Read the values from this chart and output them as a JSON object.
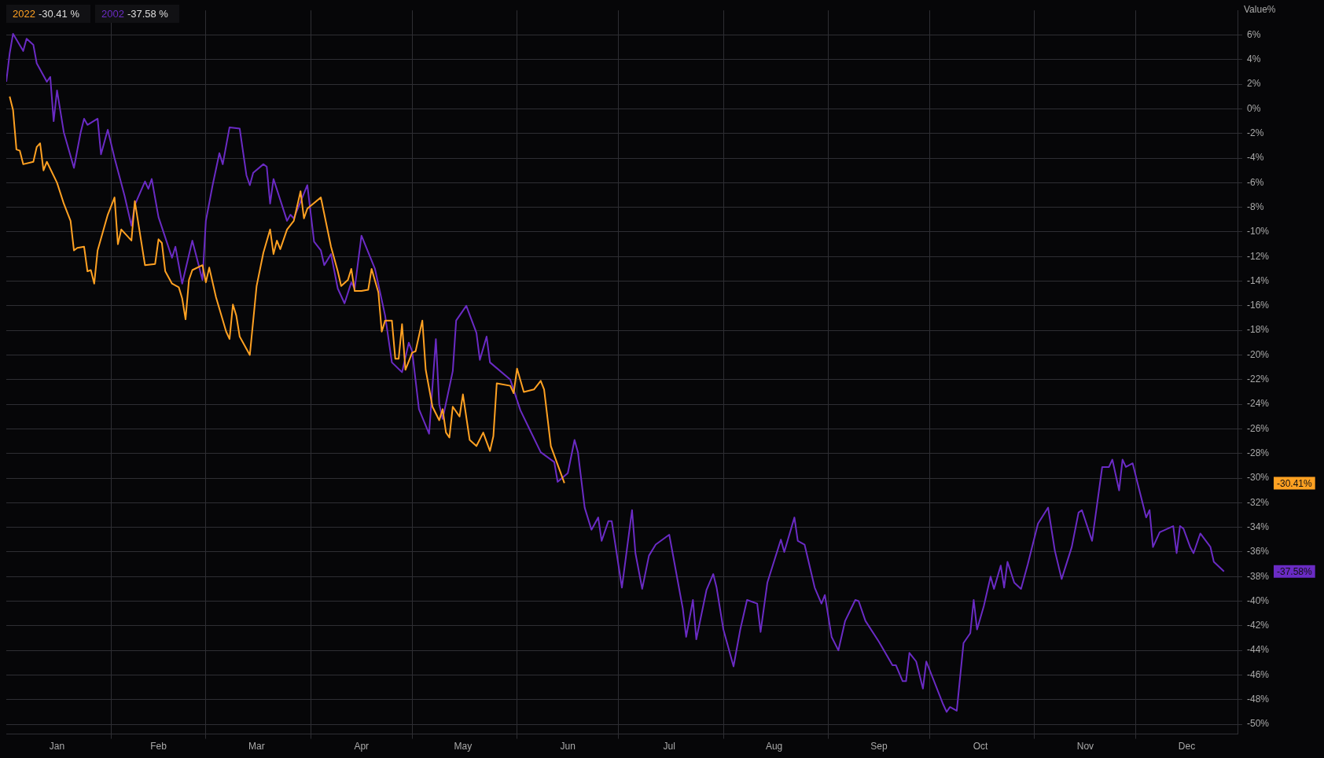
{
  "chart_data": {
    "type": "line",
    "ylabel": "Value%",
    "legend": "top left",
    "grid": true,
    "marker": "none",
    "line_style": "solid",
    "xlim": [
      "--01-01",
      "--12-31"
    ],
    "ylim": [
      -50.8,
      8
    ],
    "xticks": [
      {
        "value": "--01-16",
        "label": "Jan"
      },
      {
        "value": "--02-01",
        "label": null
      },
      {
        "value": "--02-15",
        "label": "Feb"
      },
      {
        "value": "--03-01",
        "label": null
      },
      {
        "value": "--03-16",
        "label": "Mar"
      },
      {
        "value": "--04-01",
        "label": null
      },
      {
        "value": "--04-16",
        "label": "Apr"
      },
      {
        "value": "--05-01",
        "label": null
      },
      {
        "value": "--05-16",
        "label": "May"
      },
      {
        "value": "--06-01",
        "label": null
      },
      {
        "value": "--06-16",
        "label": "Jun"
      },
      {
        "value": "--07-01",
        "label": null
      },
      {
        "value": "--07-16",
        "label": "Jul"
      },
      {
        "value": "--08-01",
        "label": null
      },
      {
        "value": "--08-16",
        "label": "Aug"
      },
      {
        "value": "--09-01",
        "label": null
      },
      {
        "value": "--09-16",
        "label": "Sep"
      },
      {
        "value": "--10-01",
        "label": null
      },
      {
        "value": "--10-16",
        "label": "Oct"
      },
      {
        "value": "--11-01",
        "label": null
      },
      {
        "value": "--11-16",
        "label": "Nov"
      },
      {
        "value": "--12-01",
        "label": null
      },
      {
        "value": "--12-16",
        "label": "Dec"
      }
    ],
    "yticks": [
      {
        "value": 6,
        "label": "6%"
      },
      {
        "value": 4,
        "label": "4%"
      },
      {
        "value": 2,
        "label": "2%"
      },
      {
        "value": 0,
        "label": "0%"
      },
      {
        "value": -2,
        "label": "-2%"
      },
      {
        "value": -4,
        "label": "-4%"
      },
      {
        "value": -6,
        "label": "-6%"
      },
      {
        "value": -8,
        "label": "-8%"
      },
      {
        "value": -10,
        "label": "-10%"
      },
      {
        "value": -12,
        "label": "-12%"
      },
      {
        "value": -14,
        "label": "-14%"
      },
      {
        "value": -16,
        "label": "-16%"
      },
      {
        "value": -18,
        "label": "-18%"
      },
      {
        "value": -20,
        "label": "-20%"
      },
      {
        "value": -22,
        "label": "-22%"
      },
      {
        "value": -24,
        "label": "-24%"
      },
      {
        "value": -26,
        "label": "-26%"
      },
      {
        "value": -28,
        "label": "-28%"
      },
      {
        "value": -30,
        "label": "-30%"
      },
      {
        "value": -32,
        "label": "-32%"
      },
      {
        "value": -34,
        "label": "-34%"
      },
      {
        "value": -36,
        "label": "-36%"
      },
      {
        "value": -38,
        "label": "-38%"
      },
      {
        "value": -40,
        "label": "-40%"
      },
      {
        "value": -42,
        "label": "-42%"
      },
      {
        "value": -44,
        "label": "-44%"
      },
      {
        "value": -46,
        "label": "-46%"
      },
      {
        "value": -48,
        "label": "-48%"
      },
      {
        "value": -50,
        "label": "-50%"
      }
    ],
    "annotations": [
      "-30.41%",
      "-37.58%",
      "-30.41 %",
      "-37.58 %"
    ],
    "series": [
      {
        "name": "2022",
        "color": "#ffa122",
        "x": [
          "--01-02",
          "--01-03",
          "--01-04",
          "--01-05",
          "--01-06",
          "--01-09",
          "--01-10",
          "--01-11",
          "--01-12",
          "--01-13",
          "--01-16",
          "--01-18",
          "--01-20",
          "--01-21",
          "--01-22",
          "--01-24",
          "--01-25",
          "--01-26",
          "--01-27",
          "--01-28",
          "--01-31",
          "--02-02",
          "--02-03",
          "--02-04",
          "--02-07",
          "--02-08",
          "--02-11",
          "--02-14",
          "--02-15",
          "--02-16",
          "--02-17",
          "--02-19",
          "--02-21",
          "--02-22",
          "--02-23",
          "--02-24",
          "--02-25",
          "--02-28",
          "--03-01",
          "--03-02",
          "--03-04",
          "--03-07",
          "--03-08",
          "--03-09",
          "--03-10",
          "--03-11",
          "--03-14",
          "--03-16",
          "--03-18",
          "--03-20",
          "--03-21",
          "--03-22",
          "--03-23",
          "--03-25",
          "--03-27",
          "--03-29",
          "--03-30",
          "--03-31",
          "--04-04",
          "--04-07",
          "--04-09",
          "--04-10",
          "--04-12",
          "--04-13",
          "--04-14",
          "--04-16",
          "--04-18",
          "--04-19",
          "--04-21",
          "--04-22",
          "--04-23",
          "--04-25",
          "--04-26",
          "--04-27",
          "--04-28",
          "--04-29",
          "--05-01",
          "--05-02",
          "--05-04",
          "--05-05",
          "--05-07",
          "--05-09",
          "--05-10",
          "--05-11",
          "--05-12",
          "--05-13",
          "--05-15",
          "--05-16",
          "--05-18",
          "--05-20",
          "--05-22",
          "--05-24",
          "--05-25",
          "--05-26",
          "--05-30",
          "--05-31",
          "--06-01",
          "--06-03",
          "--06-06",
          "--06-08",
          "--06-09",
          "--06-11",
          "--06-15"
        ],
        "values": [
          1.0,
          -0.1,
          -3.3,
          -3.4,
          -4.5,
          -4.3,
          -3.1,
          -2.8,
          -5.0,
          -4.3,
          -6.0,
          -7.7,
          -9.1,
          -11.5,
          -11.3,
          -11.2,
          -13.2,
          -13.1,
          -14.2,
          -11.5,
          -8.6,
          -7.2,
          -11.0,
          -9.8,
          -10.7,
          -7.5,
          -12.7,
          -12.6,
          -10.6,
          -10.9,
          -13.2,
          -14.2,
          -14.5,
          -15.4,
          -17.1,
          -13.9,
          -13.1,
          -12.7,
          -14.1,
          -12.9,
          -15.3,
          -18.1,
          -18.7,
          -15.9,
          -16.8,
          -18.5,
          -20.0,
          -14.4,
          -11.7,
          -9.8,
          -11.8,
          -10.7,
          -11.4,
          -9.8,
          -9.1,
          -6.7,
          -8.9,
          -8.1,
          -7.2,
          -11.2,
          -13.2,
          -14.4,
          -13.9,
          -13.0,
          -14.8,
          -14.8,
          -14.7,
          -13.0,
          -14.9,
          -18.1,
          -17.2,
          -17.2,
          -20.3,
          -20.3,
          -17.5,
          -21.2,
          -19.8,
          -19.7,
          -17.2,
          -21.2,
          -24.2,
          -25.3,
          -24.4,
          -26.3,
          -26.7,
          -24.2,
          -25.0,
          -23.2,
          -26.9,
          -27.4,
          -26.3,
          -27.8,
          -26.6,
          -22.3,
          -22.5,
          -23.1,
          -21.1,
          -23.0,
          -22.8,
          -22.1,
          -22.8,
          -27.4,
          -30.41
        ]
      },
      {
        "name": "2002",
        "color": "#6a2bc4",
        "x": [
          "--01-01",
          "--01-02",
          "--01-03",
          "--01-06",
          "--01-07",
          "--01-09",
          "--01-10",
          "--01-13",
          "--01-14",
          "--01-15",
          "--01-16",
          "--01-18",
          "--01-21",
          "--01-23",
          "--01-24",
          "--01-25",
          "--01-28",
          "--01-29",
          "--01-31",
          "--02-02",
          "--02-05",
          "--02-07",
          "--02-08",
          "--02-11",
          "--02-12",
          "--02-13",
          "--02-15",
          "--02-19",
          "--02-20",
          "--02-21",
          "--02-22",
          "--02-25",
          "--02-28",
          "--03-01",
          "--03-03",
          "--03-05",
          "--03-06",
          "--03-08",
          "--03-11",
          "--03-13",
          "--03-14",
          "--03-15",
          "--03-18",
          "--03-19",
          "--03-20",
          "--03-21",
          "--03-25",
          "--03-26",
          "--03-27",
          "--03-31",
          "--04-02",
          "--04-04",
          "--04-05",
          "--04-07",
          "--04-09",
          "--04-11",
          "--04-13",
          "--04-14",
          "--04-16",
          "--04-20",
          "--04-23",
          "--04-25",
          "--04-28",
          "--04-30",
          "--05-01",
          "--05-03",
          "--05-06",
          "--05-08",
          "--05-09",
          "--05-10",
          "--05-13",
          "--05-14",
          "--05-17",
          "--05-20",
          "--05-21",
          "--05-23",
          "--05-24",
          "--05-30",
          "--06-02",
          "--06-05",
          "--06-08",
          "--06-12",
          "--06-13",
          "--06-16",
          "--06-18",
          "--06-19",
          "--06-21",
          "--06-23",
          "--06-25",
          "--06-26",
          "--06-28",
          "--06-29",
          "--07-02",
          "--07-05",
          "--07-06",
          "--07-08",
          "--07-10",
          "--07-12",
          "--07-16",
          "--07-20",
          "--07-21",
          "--07-23",
          "--07-24",
          "--07-27",
          "--07-29",
          "--07-30",
          "--08-01",
          "--08-04",
          "--08-06",
          "--08-08",
          "--08-11",
          "--08-12",
          "--08-14",
          "--08-18",
          "--08-19",
          "--08-22",
          "--08-23",
          "--08-25",
          "--08-28",
          "--08-30",
          "--08-31",
          "--09-02",
          "--09-04",
          "--09-06",
          "--09-09",
          "--09-10",
          "--09-12",
          "--09-16",
          "--09-20",
          "--09-21",
          "--09-23",
          "--09-24",
          "--09-25",
          "--09-27",
          "--09-29",
          "--09-30",
          "--10-05",
          "--10-06",
          "--10-07",
          "--10-09",
          "--10-11",
          "--10-13",
          "--10-14",
          "--10-15",
          "--10-17",
          "--10-19",
          "--10-20",
          "--10-22",
          "--10-23",
          "--10-24",
          "--10-26",
          "--10-28",
          "--10-30",
          "--11-02",
          "--11-05",
          "--11-07",
          "--11-09",
          "--11-12",
          "--11-14",
          "--11-15",
          "--11-18",
          "--11-21",
          "--11-23",
          "--11-24",
          "--11-26",
          "--11-27",
          "--11-28",
          "--11-30",
          "--12-02",
          "--12-04",
          "--12-05",
          "--12-06",
          "--12-08",
          "--12-12",
          "--12-13",
          "--12-14",
          "--12-15",
          "--12-17",
          "--12-18",
          "--12-20",
          "--12-23",
          "--12-24",
          "--12-27"
        ],
        "values": [
          2.2,
          4.5,
          6.1,
          4.7,
          5.7,
          5.2,
          3.7,
          2.2,
          2.6,
          -1.0,
          1.5,
          -1.9,
          -4.8,
          -1.9,
          -0.8,
          -1.3,
          -0.8,
          -3.7,
          -1.7,
          -4.0,
          -7.1,
          -9.5,
          -7.8,
          -5.9,
          -6.5,
          -5.7,
          -8.8,
          -12.1,
          -11.2,
          -12.7,
          -14.2,
          -10.7,
          -13.9,
          -9.1,
          -6.2,
          -3.6,
          -4.5,
          -1.5,
          -1.6,
          -5.4,
          -6.2,
          -5.2,
          -4.5,
          -4.7,
          -7.7,
          -5.7,
          -9.1,
          -8.6,
          -8.9,
          -6.2,
          -10.8,
          -11.5,
          -12.7,
          -11.8,
          -14.6,
          -15.8,
          -14.1,
          -14.6,
          -10.3,
          -13.0,
          -16.8,
          -20.6,
          -21.4,
          -19.0,
          -19.7,
          -24.4,
          -26.4,
          -18.7,
          -24.0,
          -25.2,
          -21.3,
          -17.2,
          -16.0,
          -18.2,
          -20.4,
          -18.5,
          -20.6,
          -22.0,
          -24.5,
          -26.2,
          -27.9,
          -28.7,
          -30.3,
          -29.6,
          -26.9,
          -27.9,
          -32.4,
          -34.2,
          -33.2,
          -35.1,
          -33.5,
          -33.5,
          -38.9,
          -32.6,
          -36.1,
          -39.0,
          -36.3,
          -35.4,
          -34.6,
          -40.6,
          -42.9,
          -39.9,
          -43.1,
          -39.1,
          -37.8,
          -38.9,
          -42.3,
          -45.3,
          -42.3,
          -39.9,
          -40.2,
          -42.5,
          -38.5,
          -35.0,
          -36.0,
          -33.2,
          -35.1,
          -35.4,
          -38.9,
          -40.2,
          -39.5,
          -42.9,
          -44.0,
          -41.6,
          -39.9,
          -40.0,
          -41.6,
          -43.3,
          -45.2,
          -45.2,
          -46.5,
          -46.5,
          -44.2,
          -44.9,
          -47.1,
          -44.9,
          -48.4,
          -49.0,
          -48.6,
          -48.9,
          -43.4,
          -42.6,
          -39.9,
          -42.3,
          -40.4,
          -38.0,
          -39.0,
          -37.1,
          -38.9,
          -36.8,
          -38.5,
          -39.0,
          -37.0,
          -33.7,
          -32.4,
          -35.9,
          -38.2,
          -35.6,
          -32.8,
          -32.6,
          -35.1,
          -29.1,
          -29.1,
          -28.5,
          -31.0,
          -28.5,
          -29.1,
          -28.8,
          -31.0,
          -33.2,
          -32.6,
          -35.6,
          -34.4,
          -33.9,
          -36.1,
          -33.9,
          -34.1,
          -35.6,
          -36.1,
          -34.5,
          -35.6,
          -36.8,
          -37.58
        ]
      }
    ]
  }
}
